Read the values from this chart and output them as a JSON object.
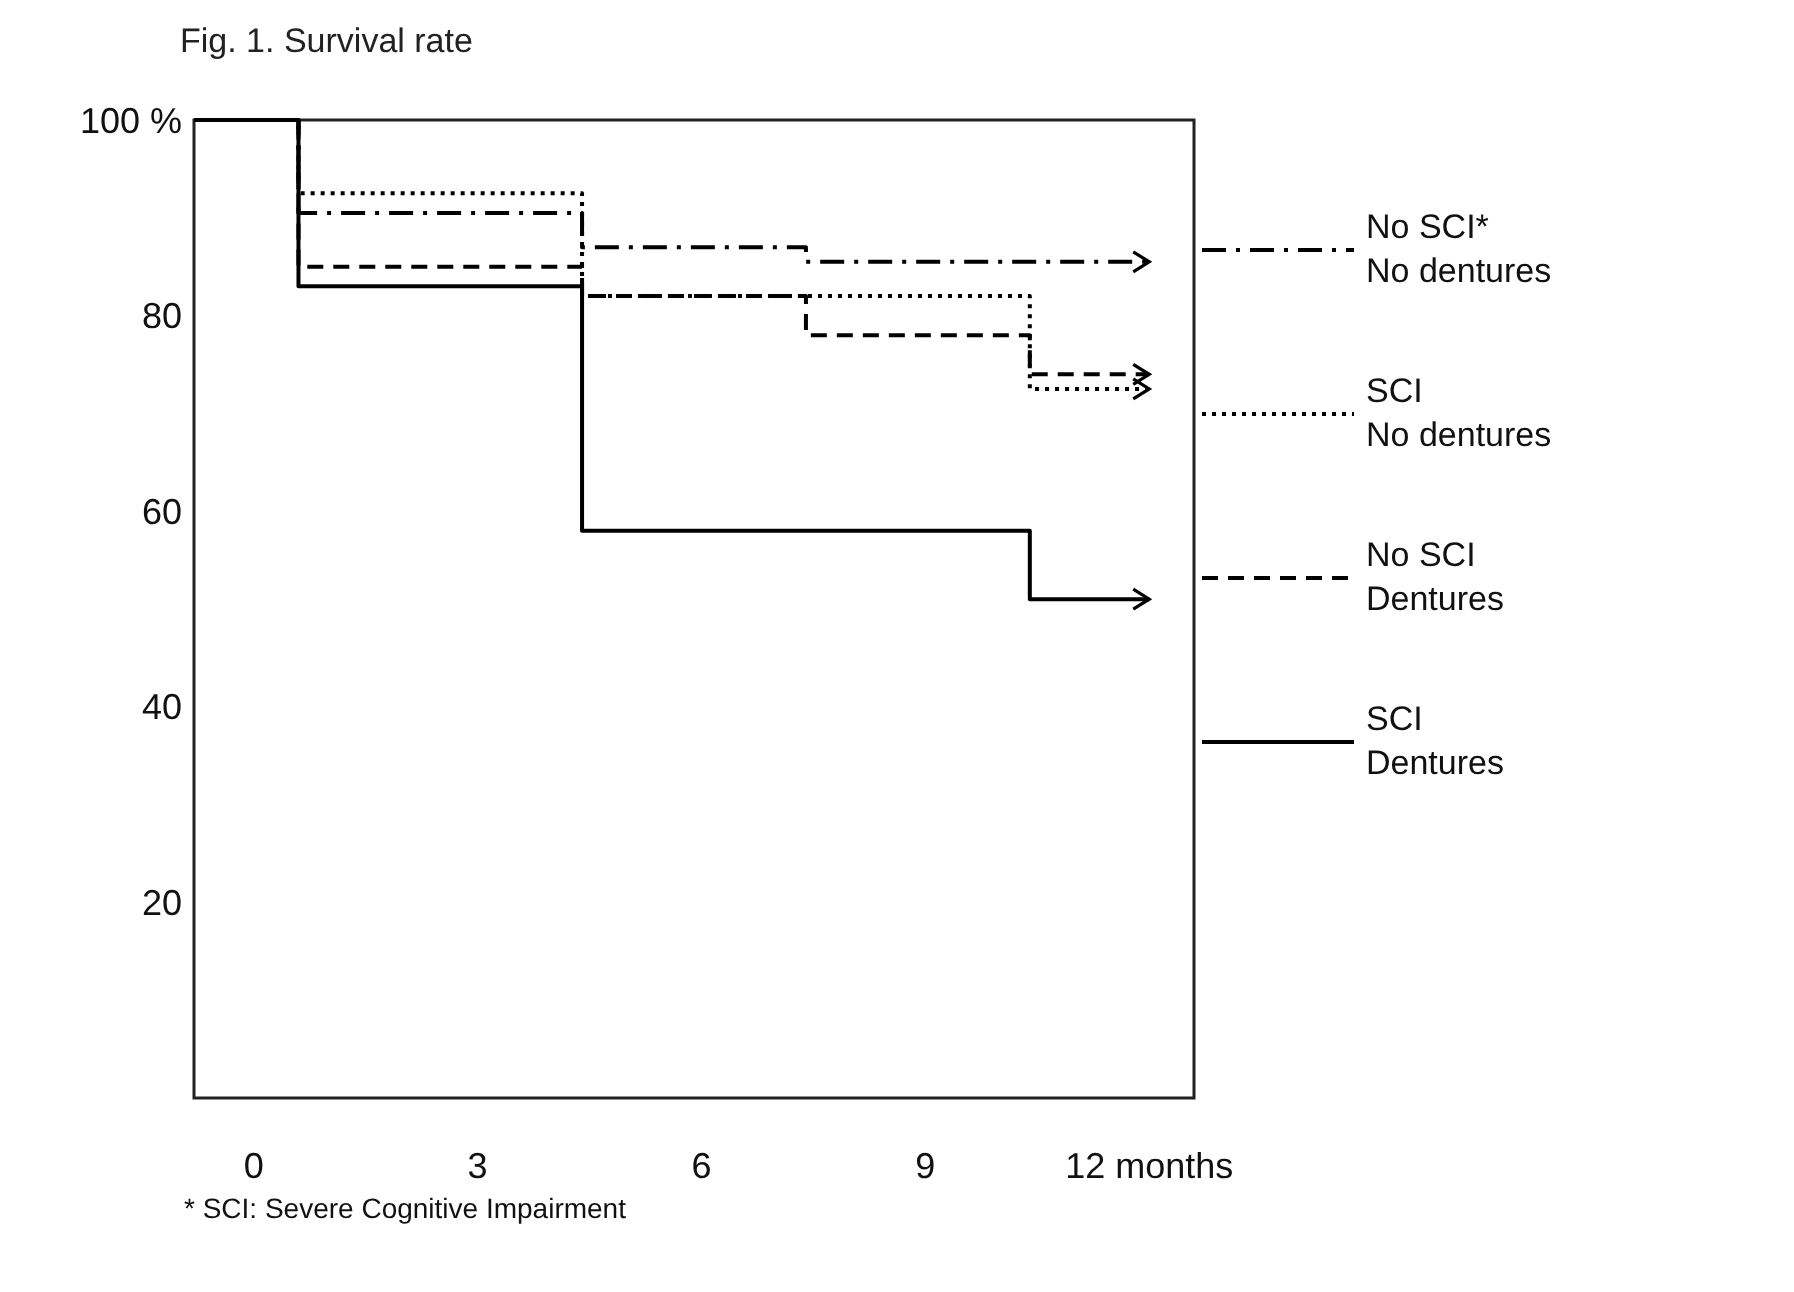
{
  "chart_data": {
    "type": "step",
    "title": "Fig. 1. Survival rate",
    "annotations": [
      "* SCI: Severe Cognitive Impairment"
    ],
    "xlim": [
      -0.8,
      12.6
    ],
    "xticks": [
      0,
      3,
      6,
      9,
      {
        "value": 12,
        "label": "12 months"
      }
    ],
    "ylim": [
      0,
      100
    ],
    "yticks": [
      {
        "value": 20,
        "label": "20"
      },
      {
        "value": 40,
        "label": "40"
      },
      {
        "value": 60,
        "label": "60"
      },
      {
        "value": 80,
        "label": "80"
      },
      {
        "value": 100,
        "label": "100 %"
      }
    ],
    "grid": false,
    "legend": "right",
    "marker": "none",
    "series": [
      {
        "name": "No SCI*\nNo dentures",
        "color": "#000000",
        "line_style": "dashdot",
        "x": [
          -0.8,
          0.6,
          4.4,
          7.4,
          12
        ],
        "values": [
          100,
          90.5,
          87,
          85.5,
          85.5
        ]
      },
      {
        "name": "SCI\nNo dentures",
        "color": "#000000",
        "line_style": "dotted",
        "x": [
          -0.8,
          0.6,
          4.4,
          10.4,
          12
        ],
        "values": [
          100,
          92.5,
          82,
          72.5,
          72.5
        ]
      },
      {
        "name": "No SCI\nDentures",
        "color": "#000000",
        "line_style": "dashed",
        "x": [
          -0.8,
          0.6,
          4.4,
          7.4,
          10.4,
          12
        ],
        "values": [
          100,
          85,
          82,
          78,
          74,
          74
        ]
      },
      {
        "name": "SCI\nDentures",
        "color": "#000000",
        "line_style": "solid",
        "x": [
          -0.8,
          0.6,
          4.4,
          10.4,
          12
        ],
        "values": [
          100,
          83,
          58,
          51,
          51
        ]
      }
    ]
  }
}
